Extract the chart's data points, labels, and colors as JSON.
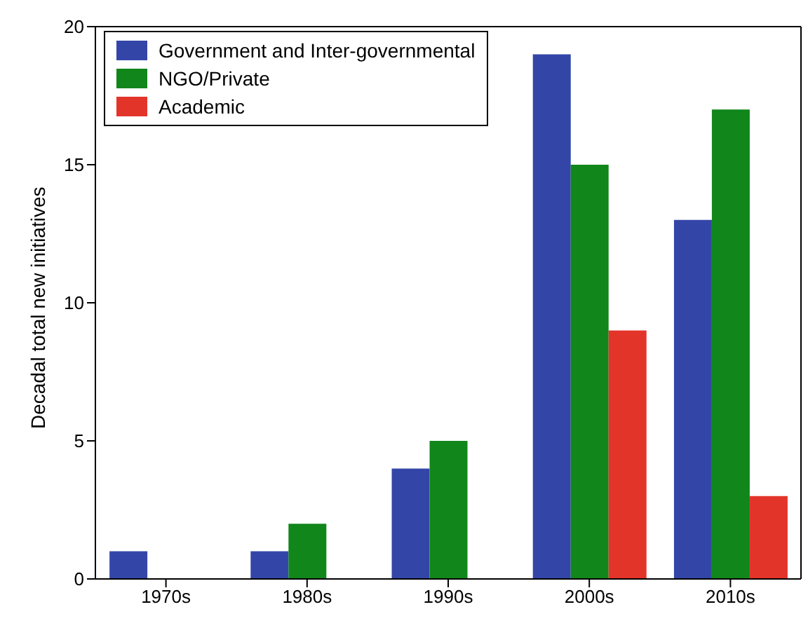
{
  "chart_data": {
    "type": "bar",
    "ylabel": "Decadal total new initiatives",
    "categories": [
      "1970s",
      "1980s",
      "1990s",
      "2000s",
      "2010s"
    ],
    "series": [
      {
        "name": "Government and Inter-governmental",
        "color": "#3346a8",
        "values": [
          1,
          1,
          4,
          19,
          13
        ]
      },
      {
        "name": "NGO/Private",
        "color": "#11861b",
        "values": [
          0,
          2,
          5,
          15,
          17
        ]
      },
      {
        "name": "Academic",
        "color": "#e3342a",
        "values": [
          0,
          0,
          0,
          9,
          3
        ]
      }
    ],
    "ylim": [
      0,
      20
    ],
    "yticks": [
      0,
      5,
      10,
      15,
      20
    ],
    "grid": false,
    "legend": "top left"
  }
}
